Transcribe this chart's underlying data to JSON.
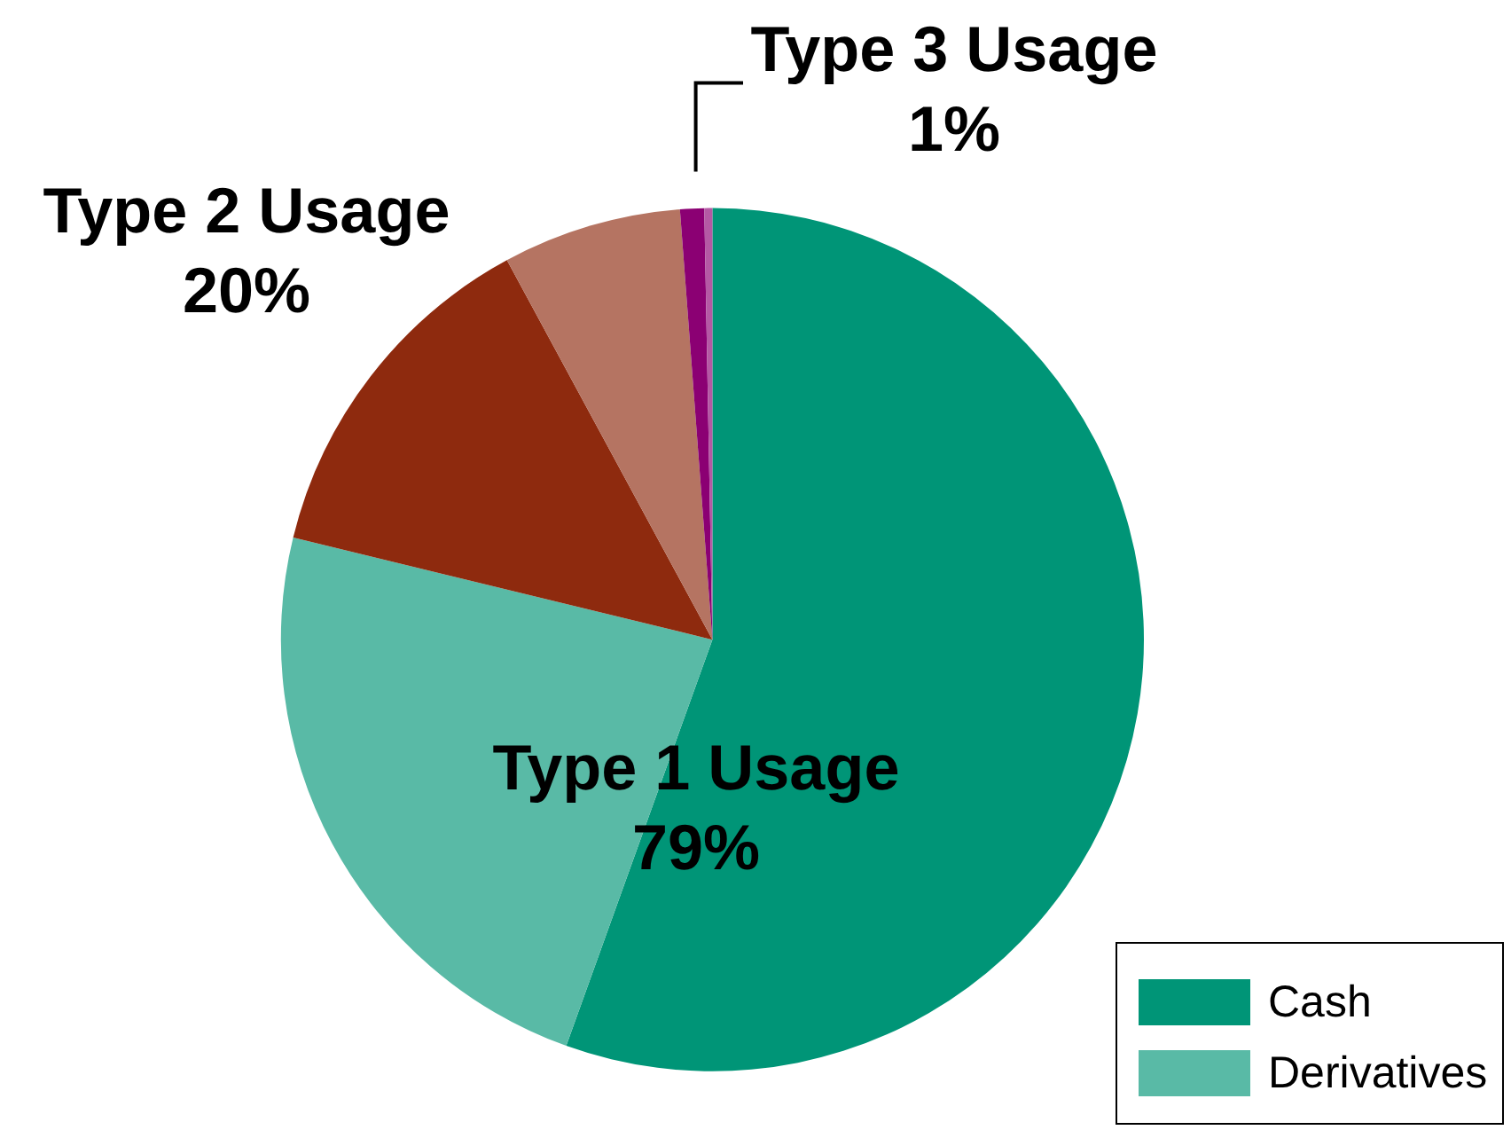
{
  "chart_data": {
    "type": "pie",
    "categories": [
      "Cash",
      "Derivatives",
      null,
      null,
      null,
      null
    ],
    "values": [
      55.5,
      23.3,
      13.3,
      6.7,
      0.9,
      0.3
    ],
    "colors": [
      "#009577",
      "#59baa6",
      "#8e2a0e",
      "#b57462",
      "#8b0073",
      "#b459a4"
    ],
    "annotations": [
      "Type 1 Usage\n79%",
      "Type 2 Usage\n20%",
      "Type 3 Usage\n1%"
    ],
    "legend": "bottom right"
  }
}
